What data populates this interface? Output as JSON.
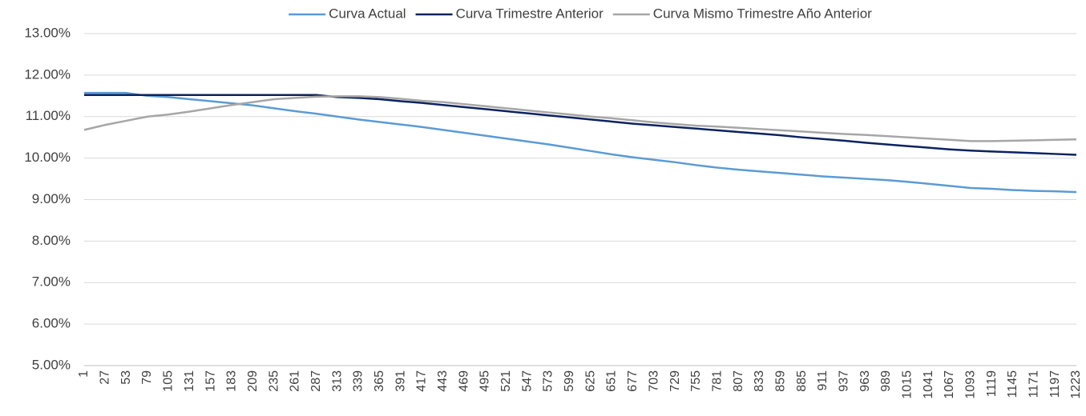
{
  "chart_data": {
    "type": "line",
    "x": [
      1,
      27,
      53,
      79,
      105,
      131,
      157,
      183,
      209,
      235,
      261,
      287,
      313,
      339,
      365,
      391,
      417,
      443,
      469,
      495,
      521,
      547,
      573,
      599,
      625,
      651,
      677,
      703,
      729,
      755,
      781,
      807,
      833,
      859,
      885,
      911,
      937,
      963,
      989,
      1015,
      1041,
      1067,
      1093,
      1119,
      1145,
      1171,
      1197,
      1223
    ],
    "xlim": [
      1,
      1223
    ],
    "series": [
      {
        "name": "Curva Actual",
        "color": "#5b9bd5",
        "values": [
          11.57,
          11.57,
          11.57,
          11.5,
          11.47,
          11.42,
          11.37,
          11.32,
          11.27,
          11.2,
          11.13,
          11.07,
          11.0,
          10.93,
          10.87,
          10.81,
          10.75,
          10.68,
          10.61,
          10.54,
          10.47,
          10.4,
          10.33,
          10.25,
          10.17,
          10.09,
          10.02,
          9.96,
          9.9,
          9.83,
          9.77,
          9.72,
          9.68,
          9.64,
          9.6,
          9.56,
          9.53,
          9.5,
          9.47,
          9.43,
          9.38,
          9.33,
          9.28,
          9.26,
          9.23,
          9.21,
          9.2,
          9.18
        ]
      },
      {
        "name": "Curva Trimestre Anterior",
        "color": "#0c2260",
        "values": [
          11.52,
          11.52,
          11.52,
          11.52,
          11.52,
          11.52,
          11.52,
          11.52,
          11.52,
          11.52,
          11.52,
          11.52,
          11.47,
          11.45,
          11.42,
          11.37,
          11.33,
          11.28,
          11.23,
          11.18,
          11.13,
          11.08,
          11.03,
          10.98,
          10.93,
          10.88,
          10.83,
          10.79,
          10.75,
          10.71,
          10.67,
          10.63,
          10.59,
          10.55,
          10.5,
          10.46,
          10.42,
          10.37,
          10.33,
          10.29,
          10.25,
          10.21,
          10.18,
          10.16,
          10.14,
          10.12,
          10.1,
          10.08
        ]
      },
      {
        "name": "Curva Mismo Trimestre Año Anterior",
        "color": "#a6a6a6",
        "values": [
          10.68,
          10.8,
          10.9,
          11.0,
          11.05,
          11.12,
          11.2,
          11.28,
          11.35,
          11.42,
          11.45,
          11.48,
          11.49,
          11.49,
          11.47,
          11.43,
          11.38,
          11.35,
          11.3,
          11.25,
          11.2,
          11.15,
          11.1,
          11.05,
          11.0,
          10.96,
          10.91,
          10.86,
          10.82,
          10.78,
          10.76,
          10.73,
          10.7,
          10.67,
          10.64,
          10.61,
          10.58,
          10.56,
          10.53,
          10.5,
          10.47,
          10.44,
          10.41,
          10.41,
          10.42,
          10.43,
          10.44,
          10.45
        ]
      }
    ],
    "ylim": [
      5,
      13
    ],
    "yticks": [
      {
        "value": 5,
        "label": "5.00%"
      },
      {
        "value": 6,
        "label": "6.00%"
      },
      {
        "value": 7,
        "label": "7.00%"
      },
      {
        "value": 8,
        "label": "8.00%"
      },
      {
        "value": 9,
        "label": "9.00%"
      },
      {
        "value": 10,
        "label": "10.00%"
      },
      {
        "value": 11,
        "label": "11.00%"
      },
      {
        "value": 12,
        "label": "12.00%"
      },
      {
        "value": 13,
        "label": "13.00%"
      }
    ],
    "grid": true,
    "legend": "top"
  }
}
